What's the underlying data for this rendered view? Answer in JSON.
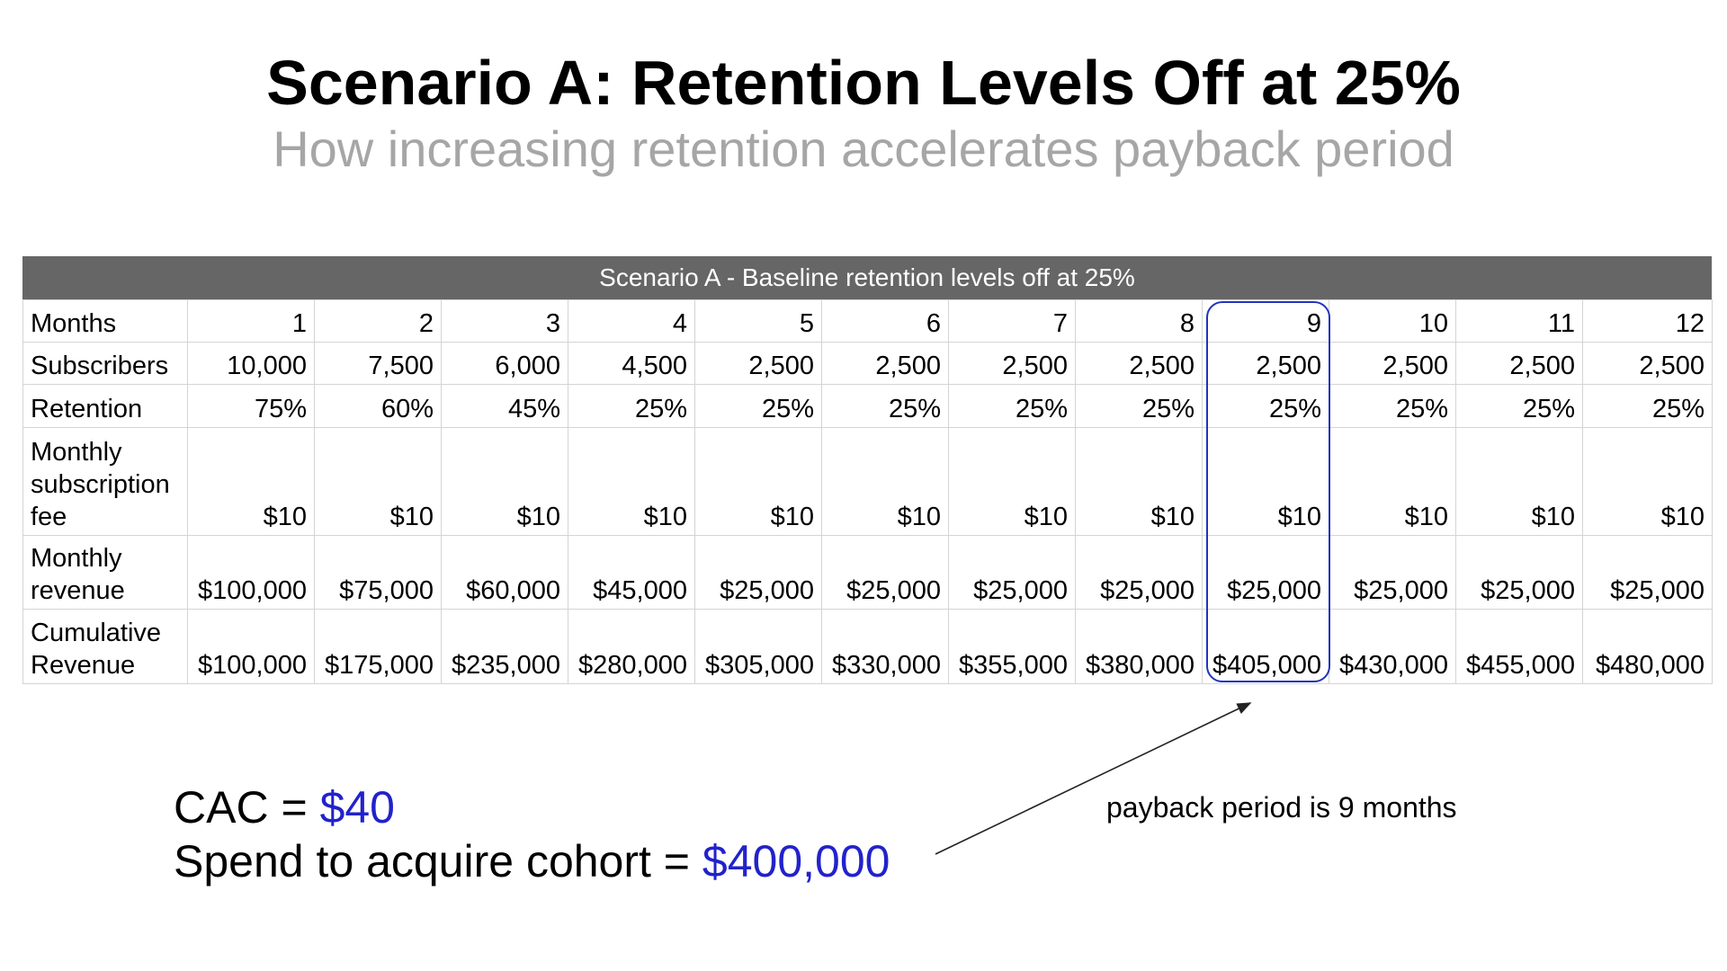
{
  "slide": {
    "title": "Scenario A: Retention Levels Off at 25%",
    "subtitle": "How increasing retention accelerates payback period"
  },
  "table": {
    "header": "Scenario A - Baseline retention levels off at 25%",
    "rows": [
      {
        "label": "Months",
        "values": [
          "1",
          "2",
          "3",
          "4",
          "5",
          "6",
          "7",
          "8",
          "9",
          "10",
          "11",
          "12"
        ]
      },
      {
        "label": "Subscribers",
        "values": [
          "10,000",
          "7,500",
          "6,000",
          "4,500",
          "2,500",
          "2,500",
          "2,500",
          "2,500",
          "2,500",
          "2,500",
          "2,500",
          "2,500"
        ]
      },
      {
        "label": "Retention",
        "values": [
          "75%",
          "60%",
          "45%",
          "25%",
          "25%",
          "25%",
          "25%",
          "25%",
          "25%",
          "25%",
          "25%",
          "25%"
        ]
      },
      {
        "label": "Monthly subscription fee",
        "values": [
          "$10",
          "$10",
          "$10",
          "$10",
          "$10",
          "$10",
          "$10",
          "$10",
          "$10",
          "$10",
          "$10",
          "$10"
        ]
      },
      {
        "label": "Monthly revenue",
        "values": [
          "$100,000",
          "$75,000",
          "$60,000",
          "$45,000",
          "$25,000",
          "$25,000",
          "$25,000",
          "$25,000",
          "$25,000",
          "$25,000",
          "$25,000",
          "$25,000"
        ]
      },
      {
        "label": "Cumulative Revenue",
        "values": [
          "$100,000",
          "$175,000",
          "$235,000",
          "$280,000",
          "$305,000",
          "$330,000",
          "$355,000",
          "$380,000",
          "$405,000",
          "$430,000",
          "$455,000",
          "$480,000"
        ]
      }
    ]
  },
  "annotation": "payback period is 9 months",
  "metrics": {
    "cac_label": "CAC = ",
    "cac_value": "$40",
    "spend_label": "Spend to acquire cohort = ",
    "spend_value": "$400,000"
  },
  "colors": {
    "header_bg": "#666666",
    "accent_blue": "#2222cc",
    "highlight_border": "#2233bb",
    "subtitle_gray": "#a6a6a6"
  }
}
